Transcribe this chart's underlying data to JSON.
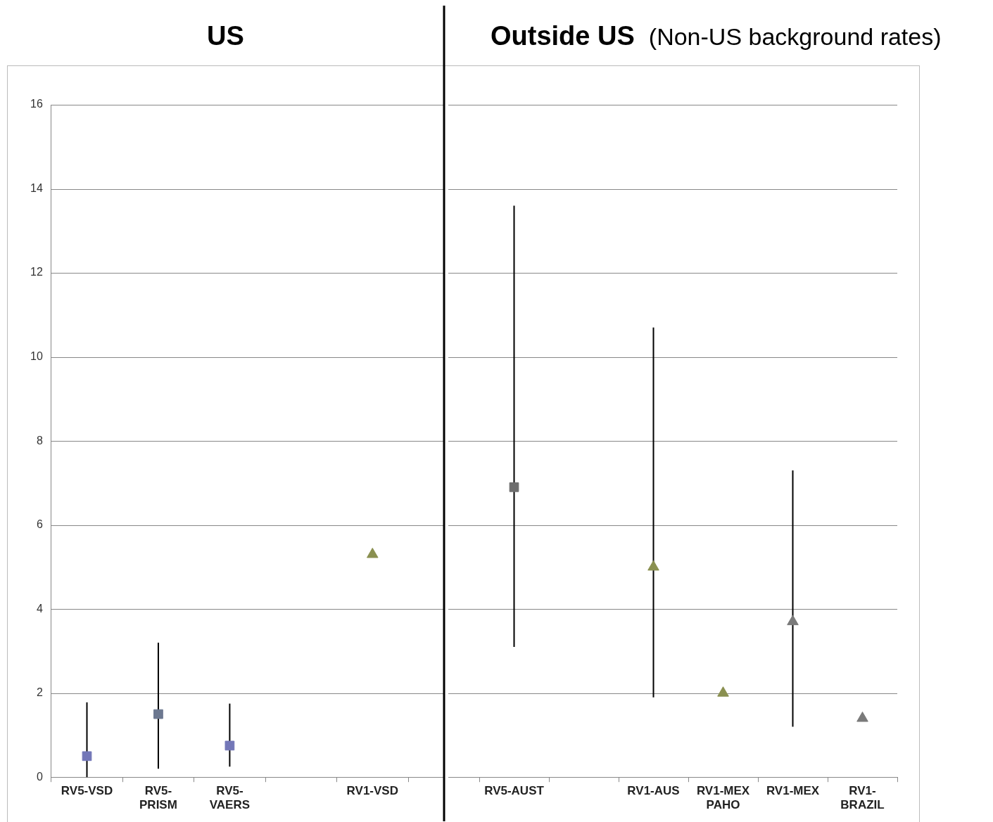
{
  "chart_data": [
    {
      "type": "scatter",
      "title": "US",
      "categories": [
        "RV5-VSD",
        "RV5-PRISM",
        "RV5-VAERS",
        null,
        "RV1-VSD"
      ],
      "series": [
        {
          "type": "scatter",
          "marker": "square",
          "colors": [
            "#7377b8",
            "#6c7890",
            "#7377b8",
            null,
            null
          ],
          "values": [
            0.5,
            1.5,
            0.75,
            null,
            null
          ],
          "errors": [
            [
              0,
              1.78
            ],
            [
              0.2,
              3.2
            ],
            [
              0.25,
              1.75
            ],
            null,
            null
          ]
        },
        {
          "type": "scatter",
          "marker": "triangle",
          "colors": [
            null,
            null,
            null,
            null,
            "#8a9050"
          ],
          "values": [
            null,
            null,
            null,
            null,
            5.3
          ]
        }
      ],
      "ylim": [
        0,
        16
      ],
      "yticks": [
        0,
        2,
        4,
        6,
        8,
        10,
        12,
        14,
        16
      ],
      "grid": "y",
      "legend": false
    },
    {
      "type": "scatter",
      "title": "Outside US",
      "subtitle": "(Non-US background rates)",
      "categories": [
        "RV5-AUST",
        null,
        "RV1-AUS",
        "RV1-MEX PAHO",
        "RV1-MEX",
        "RV1-BRAZIL"
      ],
      "series": [
        {
          "type": "scatter",
          "marker": "square",
          "colors": [
            "#6e6e6e",
            null,
            null,
            null,
            null,
            null
          ],
          "values": [
            6.9,
            null,
            null,
            null,
            null,
            null
          ],
          "errors": [
            [
              3.1,
              13.6
            ],
            null,
            null,
            null,
            null,
            null
          ]
        },
        {
          "type": "scatter",
          "marker": "triangle",
          "colors": [
            null,
            null,
            "#8a9050",
            "#8a9050",
            "#7a7a7a",
            "#7a7a7a"
          ],
          "values": [
            null,
            null,
            5.0,
            2.0,
            3.7,
            1.4
          ],
          "errors": [
            null,
            null,
            [
              1.9,
              10.7
            ],
            null,
            [
              1.2,
              7.3
            ],
            null
          ]
        }
      ],
      "ylim": [
        0,
        16
      ],
      "yticks": [
        0,
        2,
        4,
        6,
        8,
        10,
        12,
        14,
        16
      ],
      "grid": "y",
      "tick_labels": "x",
      "legend": false
    }
  ]
}
